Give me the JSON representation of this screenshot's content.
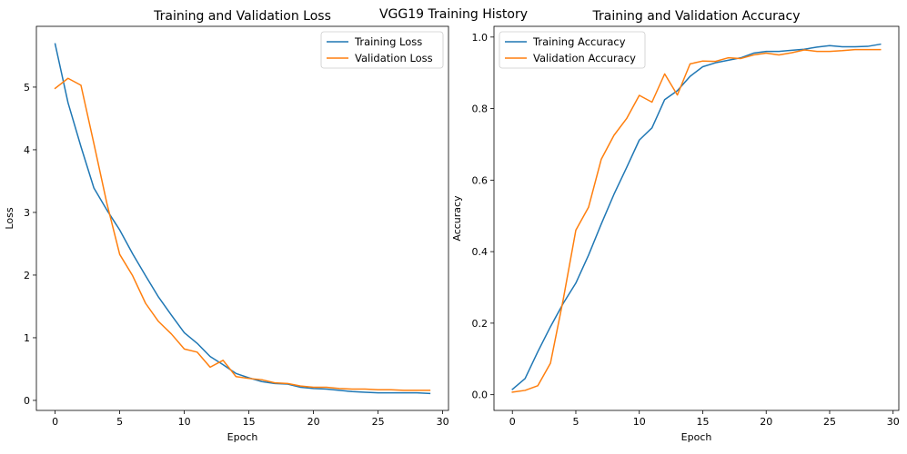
{
  "figure": {
    "suptitle": "VGG19 Training History",
    "colors": {
      "series_1": "#1f77b4",
      "series_2": "#ff7f0e",
      "axes": "#000000",
      "background": "#ffffff"
    }
  },
  "chart_data": [
    {
      "type": "line",
      "title": "Training and Validation Loss",
      "xlabel": "Epoch",
      "ylabel": "Loss",
      "xlim": [
        -1.45,
        30.45
      ],
      "ylim": [
        -0.16,
        5.97
      ],
      "xticks": [
        0,
        5,
        10,
        15,
        20,
        25,
        30
      ],
      "xtick_labels": [
        "0",
        "5",
        "10",
        "15",
        "20",
        "25",
        "30"
      ],
      "yticks": [
        0,
        1,
        2,
        3,
        4,
        5
      ],
      "ytick_labels": [
        "0",
        "1",
        "2",
        "3",
        "4",
        "5"
      ],
      "grid": false,
      "legend_position": "upper right",
      "x": [
        0,
        1,
        2,
        3,
        4,
        5,
        6,
        7,
        8,
        9,
        10,
        11,
        12,
        13,
        14,
        15,
        16,
        17,
        18,
        19,
        20,
        21,
        22,
        23,
        24,
        25,
        26,
        27,
        28,
        29
      ],
      "series": [
        {
          "name": "Training Loss",
          "color": "#1f77b4",
          "values": [
            5.69,
            4.75,
            4.05,
            3.39,
            3.04,
            2.72,
            2.34,
            1.99,
            1.65,
            1.36,
            1.08,
            0.91,
            0.7,
            0.57,
            0.43,
            0.36,
            0.3,
            0.27,
            0.26,
            0.21,
            0.19,
            0.18,
            0.16,
            0.14,
            0.13,
            0.12,
            0.12,
            0.12,
            0.12,
            0.11
          ]
        },
        {
          "name": "Validation Loss",
          "color": "#ff7f0e",
          "values": [
            4.98,
            5.14,
            5.03,
            4.1,
            3.15,
            2.33,
            1.99,
            1.55,
            1.26,
            1.06,
            0.82,
            0.77,
            0.53,
            0.64,
            0.38,
            0.35,
            0.33,
            0.28,
            0.27,
            0.23,
            0.21,
            0.21,
            0.19,
            0.18,
            0.18,
            0.17,
            0.17,
            0.16,
            0.16,
            0.16
          ]
        }
      ]
    },
    {
      "type": "line",
      "title": "Training and Validation Accuracy",
      "xlabel": "Epoch",
      "ylabel": "Accuracy",
      "xlim": [
        -1.45,
        30.45
      ],
      "ylim": [
        -0.044,
        1.03
      ],
      "xticks": [
        0,
        5,
        10,
        15,
        20,
        25,
        30
      ],
      "xtick_labels": [
        "0",
        "5",
        "10",
        "15",
        "20",
        "25",
        "30"
      ],
      "yticks": [
        0,
        0.2,
        0.4,
        0.6,
        0.8,
        1.0
      ],
      "ytick_labels": [
        "0.0",
        "0.2",
        "0.4",
        "0.6",
        "0.8",
        "1.0"
      ],
      "grid": false,
      "legend_position": "upper left",
      "x": [
        0,
        1,
        2,
        3,
        4,
        5,
        6,
        7,
        8,
        9,
        10,
        11,
        12,
        13,
        14,
        15,
        16,
        17,
        18,
        19,
        20,
        21,
        22,
        23,
        24,
        25,
        26,
        27,
        28,
        29
      ],
      "series": [
        {
          "name": "Training Accuracy",
          "color": "#1f77b4",
          "values": [
            0.015,
            0.045,
            0.12,
            0.19,
            0.255,
            0.312,
            0.39,
            0.477,
            0.56,
            0.635,
            0.712,
            0.746,
            0.825,
            0.85,
            0.89,
            0.917,
            0.928,
            0.935,
            0.942,
            0.955,
            0.96,
            0.96,
            0.963,
            0.966,
            0.972,
            0.976,
            0.973,
            0.973,
            0.974,
            0.98
          ]
        },
        {
          "name": "Validation Accuracy",
          "color": "#ff7f0e",
          "values": [
            0.007,
            0.012,
            0.025,
            0.088,
            0.265,
            0.46,
            0.524,
            0.658,
            0.725,
            0.772,
            0.837,
            0.818,
            0.897,
            0.838,
            0.925,
            0.933,
            0.932,
            0.942,
            0.94,
            0.95,
            0.955,
            0.95,
            0.956,
            0.964,
            0.96,
            0.96,
            0.962,
            0.965,
            0.965,
            0.965
          ]
        }
      ]
    }
  ]
}
